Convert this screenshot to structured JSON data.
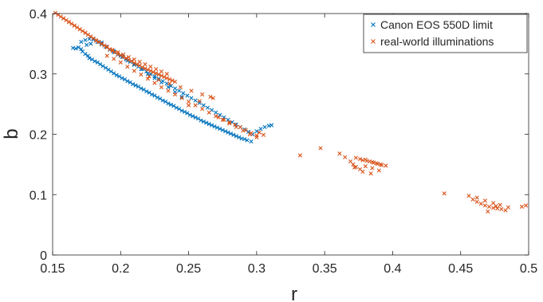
{
  "chart_data": {
    "type": "scatter",
    "xlabel": "r",
    "ylabel": "b",
    "xlim": [
      0.15,
      0.5
    ],
    "ylim": [
      0,
      0.4
    ],
    "xticks": [
      "0.15",
      "0.2",
      "0.25",
      "0.3",
      "0.35",
      "0.4",
      "0.45",
      "0.5"
    ],
    "yticks": [
      "0",
      "0.1",
      "0.2",
      "0.3",
      "0.4"
    ],
    "grid": false,
    "legend": "top-right",
    "marker": "x",
    "series": [
      {
        "name": "Canon EOS 550D limit",
        "color": "#0072BD",
        "x": [
          0.165,
          0.167,
          0.169,
          0.171,
          0.172,
          0.174,
          0.176,
          0.177,
          0.179,
          0.181,
          0.183,
          0.185,
          0.187,
          0.189,
          0.191,
          0.193,
          0.195,
          0.197,
          0.199,
          0.201,
          0.203,
          0.205,
          0.207,
          0.209,
          0.211,
          0.213,
          0.215,
          0.217,
          0.219,
          0.221,
          0.223,
          0.225,
          0.227,
          0.229,
          0.231,
          0.233,
          0.235,
          0.237,
          0.239,
          0.241,
          0.243,
          0.245,
          0.247,
          0.249,
          0.251,
          0.253,
          0.255,
          0.257,
          0.259,
          0.261,
          0.263,
          0.265,
          0.267,
          0.269,
          0.271,
          0.273,
          0.275,
          0.277,
          0.279,
          0.281,
          0.283,
          0.285,
          0.287,
          0.289,
          0.291,
          0.293,
          0.296,
          0.171,
          0.174,
          0.177,
          0.18,
          0.183,
          0.186,
          0.189,
          0.192,
          0.195,
          0.198,
          0.201,
          0.204,
          0.207,
          0.21,
          0.213,
          0.216,
          0.219,
          0.222,
          0.225,
          0.228,
          0.231,
          0.234,
          0.237,
          0.24,
          0.243,
          0.246,
          0.249,
          0.252,
          0.255,
          0.258,
          0.261,
          0.264,
          0.267,
          0.27,
          0.273,
          0.276,
          0.279,
          0.282,
          0.285,
          0.288,
          0.291,
          0.294,
          0.297,
          0.3,
          0.303,
          0.306,
          0.309,
          0.311,
          0.175,
          0.178,
          0.182,
          0.186,
          0.19,
          0.195,
          0.2,
          0.205,
          0.21,
          0.215,
          0.22,
          0.225,
          0.23,
          0.235,
          0.24,
          0.245
        ],
        "y": [
          0.343,
          0.342,
          0.344,
          0.341,
          0.337,
          0.333,
          0.33,
          0.326,
          0.324,
          0.321,
          0.319,
          0.316,
          0.313,
          0.31,
          0.307,
          0.304,
          0.301,
          0.298,
          0.296,
          0.293,
          0.291,
          0.288,
          0.286,
          0.283,
          0.281,
          0.279,
          0.276,
          0.274,
          0.271,
          0.269,
          0.266,
          0.264,
          0.261,
          0.259,
          0.256,
          0.254,
          0.251,
          0.249,
          0.247,
          0.244,
          0.242,
          0.239,
          0.237,
          0.235,
          0.232,
          0.23,
          0.228,
          0.226,
          0.223,
          0.221,
          0.219,
          0.217,
          0.215,
          0.213,
          0.211,
          0.209,
          0.207,
          0.205,
          0.203,
          0.201,
          0.199,
          0.197,
          0.195,
          0.193,
          0.192,
          0.19,
          0.188,
          0.353,
          0.356,
          0.358,
          0.357,
          0.353,
          0.349,
          0.345,
          0.34,
          0.336,
          0.332,
          0.328,
          0.324,
          0.32,
          0.316,
          0.312,
          0.308,
          0.304,
          0.3,
          0.296,
          0.292,
          0.288,
          0.284,
          0.28,
          0.276,
          0.272,
          0.268,
          0.264,
          0.26,
          0.256,
          0.252,
          0.248,
          0.244,
          0.24,
          0.236,
          0.232,
          0.228,
          0.224,
          0.22,
          0.216,
          0.212,
          0.208,
          0.204,
          0.2,
          0.205,
          0.209,
          0.212,
          0.214,
          0.215,
          0.348,
          0.35,
          0.355,
          0.352,
          0.345,
          0.338,
          0.33,
          0.322,
          0.315,
          0.308,
          0.3,
          0.293,
          0.286,
          0.278,
          0.27,
          0.262
        ]
      },
      {
        "name": "real-world illuminations",
        "color": "#D95319",
        "x": [
          0.152,
          0.154,
          0.156,
          0.158,
          0.16,
          0.162,
          0.164,
          0.166,
          0.168,
          0.17,
          0.172,
          0.174,
          0.176,
          0.178,
          0.18,
          0.182,
          0.184,
          0.186,
          0.188,
          0.19,
          0.192,
          0.194,
          0.196,
          0.198,
          0.2,
          0.202,
          0.204,
          0.206,
          0.208,
          0.21,
          0.212,
          0.214,
          0.216,
          0.218,
          0.22,
          0.222,
          0.224,
          0.226,
          0.228,
          0.23,
          0.232,
          0.234,
          0.236,
          0.238,
          0.24,
          0.158,
          0.162,
          0.166,
          0.17,
          0.174,
          0.178,
          0.182,
          0.186,
          0.19,
          0.194,
          0.198,
          0.202,
          0.206,
          0.21,
          0.214,
          0.218,
          0.222,
          0.226,
          0.23,
          0.234,
          0.19,
          0.195,
          0.2,
          0.205,
          0.21,
          0.215,
          0.22,
          0.225,
          0.23,
          0.235,
          0.24,
          0.245,
          0.25,
          0.255,
          0.26,
          0.265,
          0.27,
          0.275,
          0.28,
          0.285,
          0.29,
          0.295,
          0.3,
          0.272,
          0.276,
          0.28,
          0.284,
          0.288,
          0.292,
          0.296,
          0.3,
          0.302,
          0.305,
          0.221,
          0.228,
          0.236,
          0.244,
          0.252,
          0.26,
          0.268,
          0.25,
          0.258,
          0.266,
          0.332,
          0.347,
          0.361,
          0.365,
          0.369,
          0.371,
          0.373,
          0.376,
          0.378,
          0.38,
          0.383,
          0.386,
          0.389,
          0.392,
          0.395,
          0.38,
          0.385,
          0.39,
          0.373,
          0.376,
          0.378,
          0.381,
          0.385,
          0.388,
          0.391,
          0.372,
          0.384,
          0.438,
          0.456,
          0.459,
          0.462,
          0.465,
          0.468,
          0.471,
          0.474,
          0.477,
          0.48,
          0.483,
          0.462,
          0.468,
          0.474,
          0.479,
          0.485,
          0.47,
          0.476,
          0.495,
          0.498
        ],
        "y": [
          0.401,
          0.398,
          0.395,
          0.392,
          0.389,
          0.386,
          0.383,
          0.38,
          0.377,
          0.374,
          0.371,
          0.368,
          0.365,
          0.362,
          0.359,
          0.356,
          0.353,
          0.35,
          0.347,
          0.344,
          0.341,
          0.338,
          0.336,
          0.333,
          0.331,
          0.328,
          0.326,
          0.323,
          0.321,
          0.318,
          0.316,
          0.314,
          0.311,
          0.309,
          0.307,
          0.305,
          0.303,
          0.301,
          0.299,
          0.297,
          0.295,
          0.293,
          0.291,
          0.289,
          0.287,
          0.392,
          0.386,
          0.38,
          0.374,
          0.368,
          0.362,
          0.355,
          0.35,
          0.345,
          0.34,
          0.336,
          0.332,
          0.328,
          0.324,
          0.32,
          0.316,
          0.312,
          0.308,
          0.304,
          0.3,
          0.33,
          0.325,
          0.319,
          0.312,
          0.305,
          0.299,
          0.292,
          0.285,
          0.278,
          0.272,
          0.266,
          0.26,
          0.254,
          0.248,
          0.242,
          0.236,
          0.23,
          0.224,
          0.218,
          0.212,
          0.206,
          0.2,
          0.195,
          0.228,
          0.224,
          0.22,
          0.216,
          0.212,
          0.207,
          0.202,
          0.198,
          0.203,
          0.199,
          0.296,
          0.29,
          0.284,
          0.278,
          0.272,
          0.266,
          0.26,
          0.248,
          0.255,
          0.262,
          0.165,
          0.177,
          0.168,
          0.162,
          0.155,
          0.15,
          0.146,
          0.142,
          0.138,
          0.158,
          0.155,
          0.153,
          0.151,
          0.149,
          0.148,
          0.147,
          0.144,
          0.14,
          0.161,
          0.159,
          0.157,
          0.156,
          0.154,
          0.152,
          0.15,
          0.145,
          0.135,
          0.102,
          0.098,
          0.092,
          0.088,
          0.085,
          0.082,
          0.08,
          0.078,
          0.077,
          0.076,
          0.074,
          0.095,
          0.09,
          0.086,
          0.083,
          0.079,
          0.072,
          0.081,
          0.08,
          0.082
        ]
      }
    ]
  }
}
